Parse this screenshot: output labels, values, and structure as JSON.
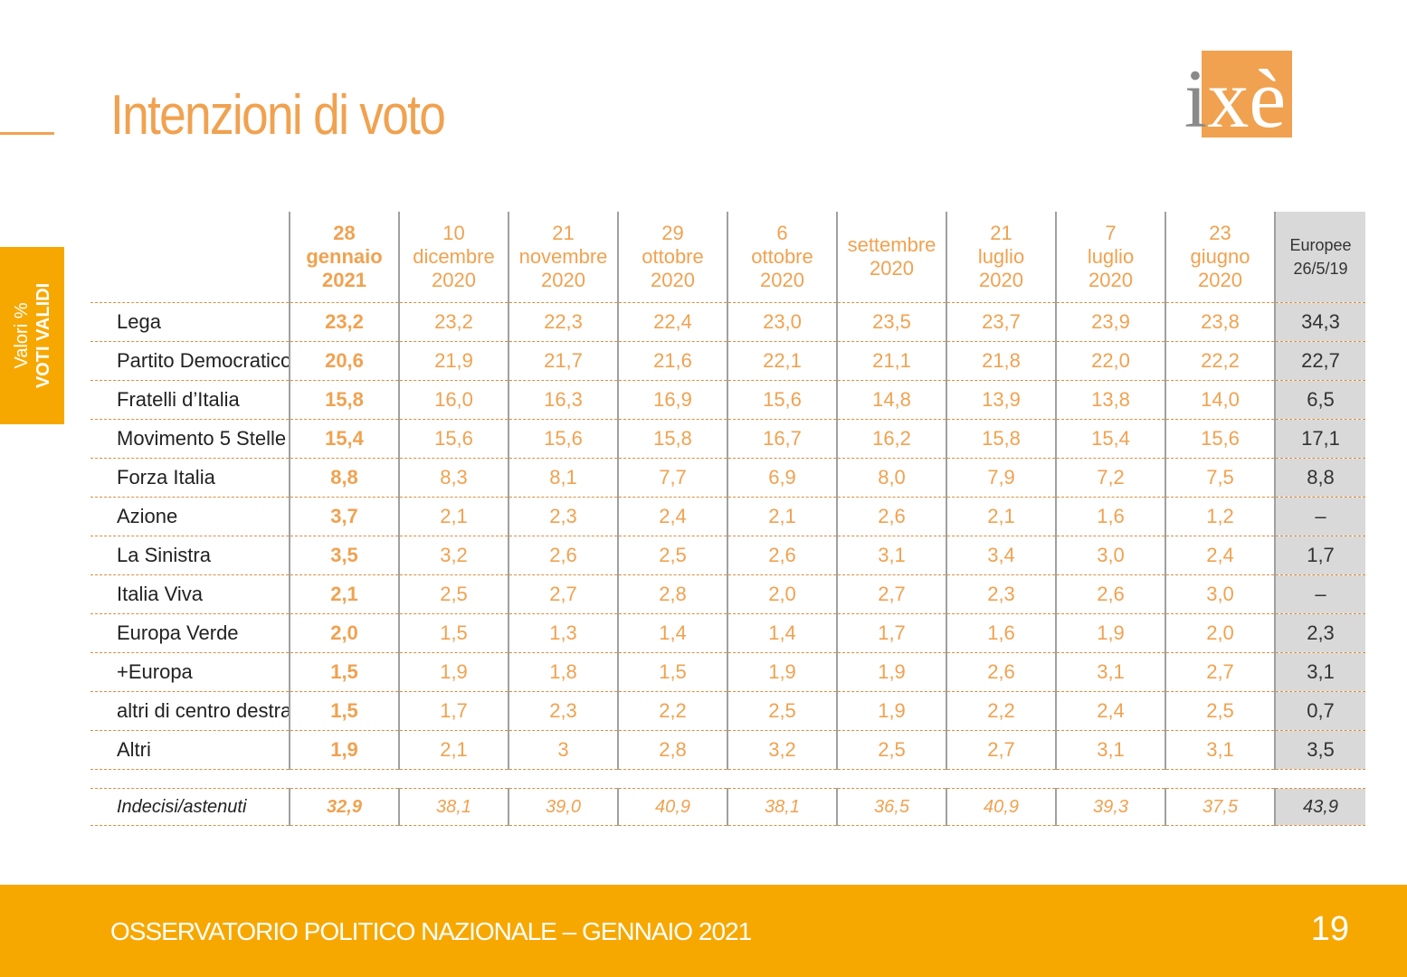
{
  "title": "Intenzioni di voto",
  "logo": {
    "text": "ixè"
  },
  "side_tab": {
    "line1": "Valori %",
    "line2": "VOTI VALIDI"
  },
  "table": {
    "columns": [
      {
        "day": "28",
        "month": "gennaio",
        "year": "2021"
      },
      {
        "day": "10",
        "month": "dicembre",
        "year": "2020"
      },
      {
        "day": "21",
        "month": "novembre",
        "year": "2020"
      },
      {
        "day": "29",
        "month": "ottobre",
        "year": "2020"
      },
      {
        "day": "6",
        "month": "ottobre",
        "year": "2020"
      },
      {
        "day": "",
        "month": "settembre",
        "year": "2020"
      },
      {
        "day": "21",
        "month": "luglio",
        "year": "2020"
      },
      {
        "day": "7",
        "month": "luglio",
        "year": "2020"
      },
      {
        "day": "23",
        "month": "giugno",
        "year": "2020"
      },
      {
        "day": "",
        "month": "Europee",
        "year": "26/5/19"
      }
    ],
    "rows": [
      {
        "party": "Lega",
        "values": [
          "23,2",
          "23,2",
          "22,3",
          "22,4",
          "23,0",
          "23,5",
          "23,7",
          "23,9",
          "23,8",
          "34,3"
        ]
      },
      {
        "party": "Partito Democratico",
        "values": [
          "20,6",
          "21,9",
          "21,7",
          "21,6",
          "22,1",
          "21,1",
          "21,8",
          "22,0",
          "22,2",
          "22,7"
        ]
      },
      {
        "party": "Fratelli d’Italia",
        "values": [
          "15,8",
          "16,0",
          "16,3",
          "16,9",
          "15,6",
          "14,8",
          "13,9",
          "13,8",
          "14,0",
          "6,5"
        ]
      },
      {
        "party": "Movimento 5 Stelle",
        "values": [
          "15,4",
          "15,6",
          "15,6",
          "15,8",
          "16,7",
          "16,2",
          "15,8",
          "15,4",
          "15,6",
          "17,1"
        ]
      },
      {
        "party": "Forza Italia",
        "values": [
          "8,8",
          "8,3",
          "8,1",
          "7,7",
          "6,9",
          "8,0",
          "7,9",
          "7,2",
          "7,5",
          "8,8"
        ]
      },
      {
        "party": "Azione",
        "values": [
          "3,7",
          "2,1",
          "2,3",
          "2,4",
          "2,1",
          "2,6",
          "2,1",
          "1,6",
          "1,2",
          "–"
        ]
      },
      {
        "party": "La Sinistra",
        "values": [
          "3,5",
          "3,2",
          "2,6",
          "2,5",
          "2,6",
          "3,1",
          "3,4",
          "3,0",
          "2,4",
          "1,7"
        ]
      },
      {
        "party": "Italia Viva",
        "values": [
          "2,1",
          "2,5",
          "2,7",
          "2,8",
          "2,0",
          "2,7",
          "2,3",
          "2,6",
          "3,0",
          "–"
        ]
      },
      {
        "party": "Europa Verde",
        "values": [
          "2,0",
          "1,5",
          "1,3",
          "1,4",
          "1,4",
          "1,7",
          "1,6",
          "1,9",
          "2,0",
          "2,3"
        ]
      },
      {
        "party": "+Europa",
        "values": [
          "1,5",
          "1,9",
          "1,8",
          "1,5",
          "1,9",
          "1,9",
          "2,6",
          "3,1",
          "2,7",
          "3,1"
        ]
      },
      {
        "party": "altri di centro destra",
        "values": [
          "1,5",
          "1,7",
          "2,3",
          "2,2",
          "2,5",
          "1,9",
          "2,2",
          "2,4",
          "2,5",
          "0,7"
        ]
      },
      {
        "party": "Altri",
        "values": [
          "1,9",
          "2,1",
          "3",
          "2,8",
          "3,2",
          "2,5",
          "2,7",
          "3,1",
          "3,1",
          "3,5"
        ]
      }
    ],
    "undecided": {
      "party": "Indecisi/astenuti",
      "values": [
        "32,9",
        "38,1",
        "39,0",
        "40,9",
        "38,1",
        "36,5",
        "40,9",
        "39,3",
        "37,5",
        "43,9"
      ]
    }
  },
  "footer": {
    "text": "OSSERVATORIO POLITICO NAZIONALE – GENNAIO 2021",
    "page": "19"
  },
  "colors": {
    "accent": "#f0a250",
    "footer": "#f7a800",
    "europee_bg": "#d9d9d9"
  }
}
